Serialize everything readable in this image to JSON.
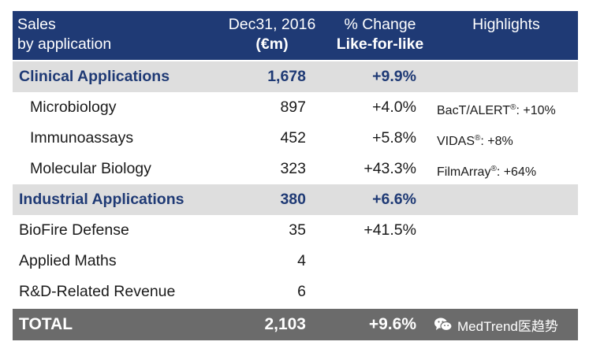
{
  "header": {
    "col1_line1": "Sales",
    "col1_line2": "by application",
    "col2_line1": "Dec31, 2016",
    "col2_line2": "(€m)",
    "col3_line1": "% Change",
    "col3_line2": "Like-for-like",
    "col4": "Highlights"
  },
  "rows": [
    {
      "name": "Clinical Applications",
      "value": "1,678",
      "change": "+9.9%",
      "highlight": ""
    },
    {
      "name": "Microbiology",
      "value": "897",
      "change": "+4.0%",
      "highlight_name": "BacT/ALERT",
      "highlight_mark": "®",
      "highlight_rest": ": +10%"
    },
    {
      "name": "Immunoassays",
      "value": "452",
      "change": "+5.8%",
      "highlight_name": "VIDAS",
      "highlight_mark": "®",
      "highlight_rest": ": +8%"
    },
    {
      "name": "Molecular Biology",
      "value": "323",
      "change": "+43.3%",
      "highlight_name": "FilmArray",
      "highlight_mark": "®",
      "highlight_rest": ": +64%"
    },
    {
      "name": "Industrial Applications",
      "value": "380",
      "change": "+6.6%",
      "highlight": ""
    },
    {
      "name": "BioFire Defense",
      "value": "35",
      "change": "+41.5%",
      "highlight": ""
    },
    {
      "name": "Applied Maths",
      "value": "4",
      "change": "",
      "highlight": ""
    },
    {
      "name": "R&D-Related Revenue",
      "value": "6",
      "change": "",
      "highlight": ""
    }
  ],
  "total": {
    "name": "TOTAL",
    "value": "2,103",
    "change": "+9.6%"
  },
  "watermark": {
    "text": "MedTrend医趋势",
    "icon": "wechat-icon"
  },
  "colors": {
    "header_bg": "#1f3a75",
    "category_text": "#1f3a75",
    "shade": "#dedede",
    "total_bg": "#6b6b6b"
  }
}
